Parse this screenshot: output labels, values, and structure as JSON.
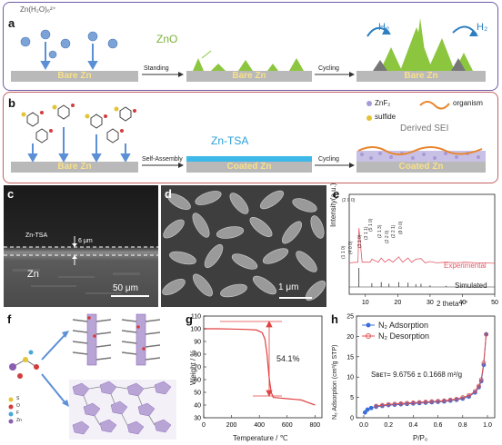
{
  "panel_a": {
    "label": "a",
    "ion_label": "Zn(H₂O)₆²⁺",
    "zno": "ZnO",
    "h2_left": "H₂",
    "h2_right": "H₂",
    "bare1": "Bare Zn",
    "bare2": "Bare Zn",
    "bare3": "Bare Zn",
    "arrow1": "Standing",
    "arrow2": "Cycling"
  },
  "panel_b": {
    "label": "b",
    "bare": "Bare Zn",
    "coated1": "Coated Zn",
    "coated2": "Coated Zn",
    "zn_tsa": "Zn-TSA",
    "arrow1": "Self-Assembly",
    "arrow2": "Cycling",
    "legend_znf2": "ZnF₂",
    "legend_organism": "organism",
    "legend_sulfide": "sulfide",
    "derived_sei": "Derived SEI"
  },
  "panel_c": {
    "label": "c",
    "layer": "Zn-TSA",
    "thickness": "6 μm",
    "substrate": "Zn",
    "scale": "50 μm"
  },
  "panel_d": {
    "label": "d",
    "scale": "1 μm"
  },
  "panel_e": {
    "label": "e",
    "ylabel": "Intensity(a.u.)",
    "xlabel": "2 theta / °",
    "experimental": "Experimental",
    "simulated": "Simulated",
    "peaks": [
      "(2 0 0)",
      "(1 1 0)",
      "(4 0 0)",
      "(3 1 0)",
      "(3 1 1)",
      "(5 1 0)",
      "(2 1 3)",
      "(2 2 0)",
      "(2 2 1)",
      "(8 0 0)"
    ]
  },
  "panel_f": {
    "label": "f",
    "legend": [
      "S",
      "O",
      "F",
      "Zn"
    ]
  },
  "panel_g": {
    "label": "g",
    "percent": "54.1%"
  },
  "panel_h": {
    "label": "h",
    "legend_ads": "N₂ Adsorption",
    "legend_des": "N₂ Desorption",
    "sbet": "Sʙᴇᴛ= 9.6756 ± 0.1668 m²/g"
  },
  "chart_data": [
    {
      "type": "line",
      "panel": "e",
      "xlabel": "2 theta / °",
      "ylabel": "Intensity(a.u.)",
      "xlim": [
        5,
        50
      ],
      "xticks": [
        10,
        20,
        30,
        40,
        50
      ],
      "series": [
        {
          "name": "Experimental",
          "x": [
            5,
            7.7,
            8,
            9,
            11.5,
            12,
            14,
            14.9,
            16,
            17.3,
            18.5,
            20.3,
            21.5,
            23.2,
            24.3,
            25.6,
            27.2,
            28.5,
            30,
            32,
            35,
            38,
            41,
            44,
            47,
            50
          ],
          "y": [
            0.04,
            0.05,
            0.62,
            0.05,
            0.05,
            0.1,
            0.05,
            0.12,
            0.05,
            0.1,
            0.05,
            0.14,
            0.05,
            0.12,
            0.05,
            0.1,
            0.11,
            0.04,
            0.06,
            0.04,
            0.05,
            0.04,
            0.05,
            0.04,
            0.04,
            0.03
          ]
        },
        {
          "name": "Simulated",
          "x": [
            8,
            12,
            14.9,
            17.3,
            20.3,
            23.2,
            25.6,
            27.2,
            30,
            35,
            40
          ],
          "y": [
            0.35,
            0.07,
            0.09,
            0.06,
            0.09,
            0.08,
            0.05,
            0.06,
            0.03,
            0.02,
            0.02
          ]
        }
      ]
    },
    {
      "type": "line",
      "panel": "g",
      "xlabel": "Temperature / ℃",
      "ylabel": "Weight / %",
      "xlim": [
        0,
        850
      ],
      "ylim": [
        30,
        110
      ],
      "xticks": [
        0,
        200,
        400,
        600,
        800
      ],
      "yticks": [
        30,
        40,
        50,
        60,
        70,
        80,
        90,
        100,
        110
      ],
      "series": [
        {
          "name": "",
          "x": [
            0,
            100,
            200,
            300,
            380,
            420,
            440,
            455,
            470,
            485,
            500,
            550,
            600,
            650,
            700,
            750,
            800
          ],
          "y": [
            100,
            100,
            99.8,
            99.5,
            99,
            97,
            92,
            80,
            62,
            50,
            46,
            45.5,
            45,
            44.5,
            44,
            42,
            40
          ]
        }
      ]
    },
    {
      "type": "line",
      "panel": "h",
      "xlabel": "P/P₀",
      "ylabel": "N₂ Adsorption (cm³/g STP)",
      "xlim": [
        0,
        1.0
      ],
      "ylim": [
        0,
        25
      ],
      "xticks": [
        0,
        0.2,
        0.4,
        0.6,
        0.8,
        1.0
      ],
      "yticks": [
        0,
        5,
        10,
        15,
        20,
        25
      ],
      "series": [
        {
          "name": "N₂ Adsorption",
          "x": [
            0.01,
            0.03,
            0.06,
            0.1,
            0.15,
            0.2,
            0.25,
            0.3,
            0.35,
            0.4,
            0.45,
            0.5,
            0.55,
            0.6,
            0.65,
            0.7,
            0.75,
            0.8,
            0.85,
            0.9,
            0.93,
            0.95,
            0.97,
            0.99
          ],
          "y": [
            1.3,
            2.0,
            2.4,
            2.7,
            2.9,
            3.1,
            3.2,
            3.3,
            3.4,
            3.5,
            3.6,
            3.7,
            3.8,
            3.9,
            4.0,
            4.2,
            4.4,
            4.7,
            5.2,
            6.2,
            7.5,
            9.0,
            13,
            20.5
          ]
        },
        {
          "name": "N₂ Desorption",
          "x": [
            0.99,
            0.97,
            0.95,
            0.93,
            0.9,
            0.85,
            0.8,
            0.75,
            0.7,
            0.65,
            0.6,
            0.55,
            0.5,
            0.45,
            0.4,
            0.35,
            0.3,
            0.25,
            0.2,
            0.15,
            0.1
          ],
          "y": [
            20.5,
            13.5,
            9.4,
            7.8,
            6.5,
            5.5,
            5.0,
            4.6,
            4.4,
            4.2,
            4.1,
            4.0,
            3.9,
            3.8,
            3.7,
            3.6,
            3.5,
            3.4,
            3.3,
            3.1,
            2.9
          ]
        }
      ]
    }
  ],
  "colors": {
    "purple": "#6f5aa8",
    "red": "#c46064",
    "zn_grey": "#b9b9b9",
    "green": "#8cc63f",
    "blue_coat": "#3db8e8",
    "exp_red": "#e05a66",
    "ads_blue": "#3a6fd8",
    "des_red": "#e05050"
  }
}
